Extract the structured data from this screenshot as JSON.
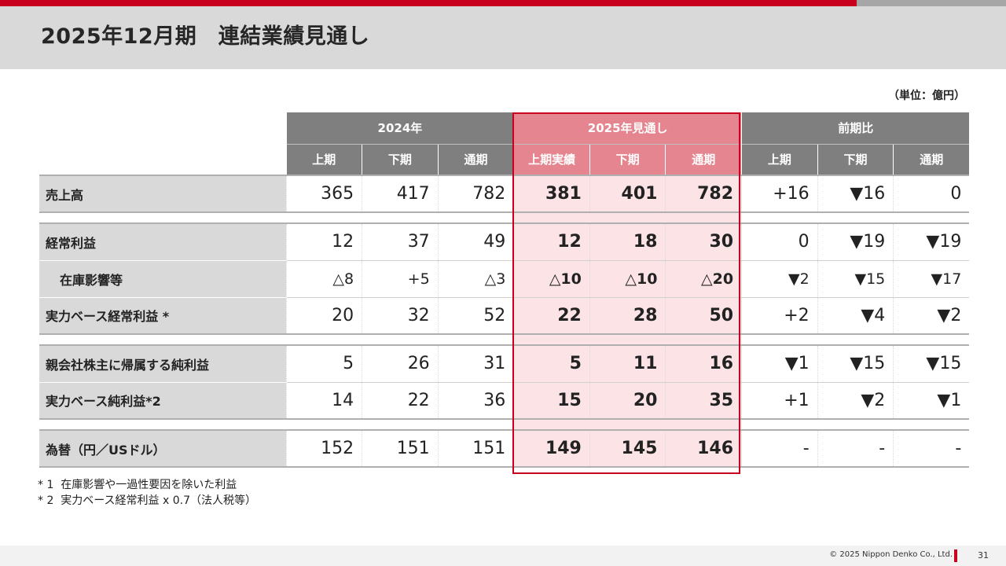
{
  "header": {
    "title": "2025年12月期　連結業績見通し"
  },
  "unit_label": "（単位：億円）",
  "table": {
    "group_headers": [
      "2024年",
      "2025年見通し",
      "前期比"
    ],
    "sub_headers": [
      "上期",
      "下期",
      "通期",
      "上期実績",
      "下期",
      "通期",
      "上期",
      "下期",
      "通期"
    ],
    "rows": [
      {
        "label": "売上高",
        "values": [
          "365",
          "417",
          "782",
          "381",
          "401",
          "782",
          "+16",
          "▼16",
          "0"
        ]
      },
      {
        "label": "経常利益",
        "values": [
          "12",
          "37",
          "49",
          "12",
          "18",
          "30",
          "0",
          "▼19",
          "▼19"
        ]
      },
      {
        "label": "在庫影響等",
        "values": [
          "△8",
          "+5",
          "△3",
          "△10",
          "△10",
          "△20",
          "▼2",
          "▼15",
          "▼17"
        ]
      },
      {
        "label": "実力ベース経常利益 *",
        "values": [
          "20",
          "32",
          "52",
          "22",
          "28",
          "50",
          "+2",
          "▼4",
          "▼2"
        ]
      },
      {
        "label": "親会社株主に帰属する純利益",
        "values": [
          "5",
          "26",
          "31",
          "5",
          "11",
          "16",
          "▼1",
          "▼15",
          "▼15"
        ]
      },
      {
        "label": "実力ベース純利益*2",
        "values": [
          "14",
          "22",
          "36",
          "15",
          "20",
          "35",
          "+1",
          "▼2",
          "▼1"
        ]
      },
      {
        "label": "為替（円／USドル）",
        "values": [
          "152",
          "151",
          "151",
          "149",
          "145",
          "146",
          "-",
          "-",
          "-"
        ]
      }
    ]
  },
  "notes": [
    "* 1  在庫影響や一過性要因を除いた利益",
    "* 2  実力ベース経常利益 x 0.7（法人税等）"
  ],
  "footer": {
    "copyright": "© 2025 Nippon Denko Co., Ltd.",
    "page": "31"
  },
  "colors": {
    "accent_red": "#c8001e",
    "header_grey": "#7f7f7f",
    "highlight_header": "#e5858f",
    "highlight_fill": "#fbe3e6",
    "label_grey": "#d9d9d9"
  }
}
